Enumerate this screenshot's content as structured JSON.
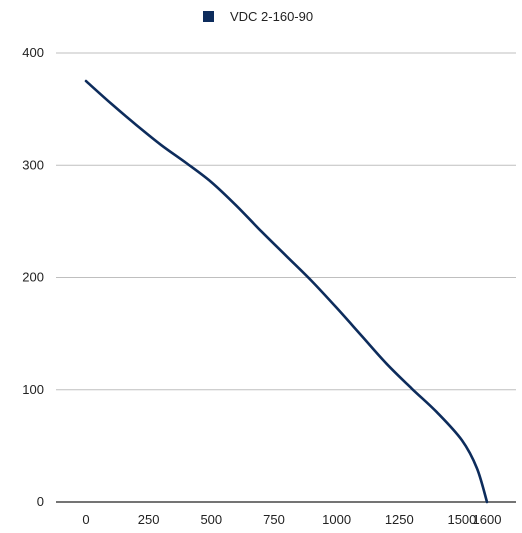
{
  "chart_data": {
    "type": "line",
    "legend": {
      "position": "top-center"
    },
    "series": [
      {
        "name": "VDC 2-160-90",
        "color": "#0d2c5c",
        "points": [
          [
            0,
            375
          ],
          [
            100,
            355
          ],
          [
            200,
            336
          ],
          [
            300,
            318
          ],
          [
            400,
            302
          ],
          [
            500,
            285
          ],
          [
            600,
            264
          ],
          [
            700,
            241
          ],
          [
            800,
            219
          ],
          [
            900,
            197
          ],
          [
            1000,
            173
          ],
          [
            1100,
            148
          ],
          [
            1200,
            123
          ],
          [
            1300,
            101
          ],
          [
            1400,
            80
          ],
          [
            1500,
            55
          ],
          [
            1560,
            30
          ],
          [
            1600,
            0
          ]
        ]
      }
    ],
    "xticks": [
      "0",
      "250",
      "500",
      "750",
      "1000",
      "1250",
      "1500",
      "1600"
    ],
    "xtick_values": [
      0,
      250,
      500,
      750,
      1000,
      1250,
      1500,
      1600
    ],
    "yticks": [
      "0",
      "100",
      "200",
      "300",
      "400"
    ],
    "yrange": [
      0,
      400
    ],
    "grid": "horizontal",
    "grid_color": "#bfbfbf",
    "axis_color": "#222222"
  }
}
